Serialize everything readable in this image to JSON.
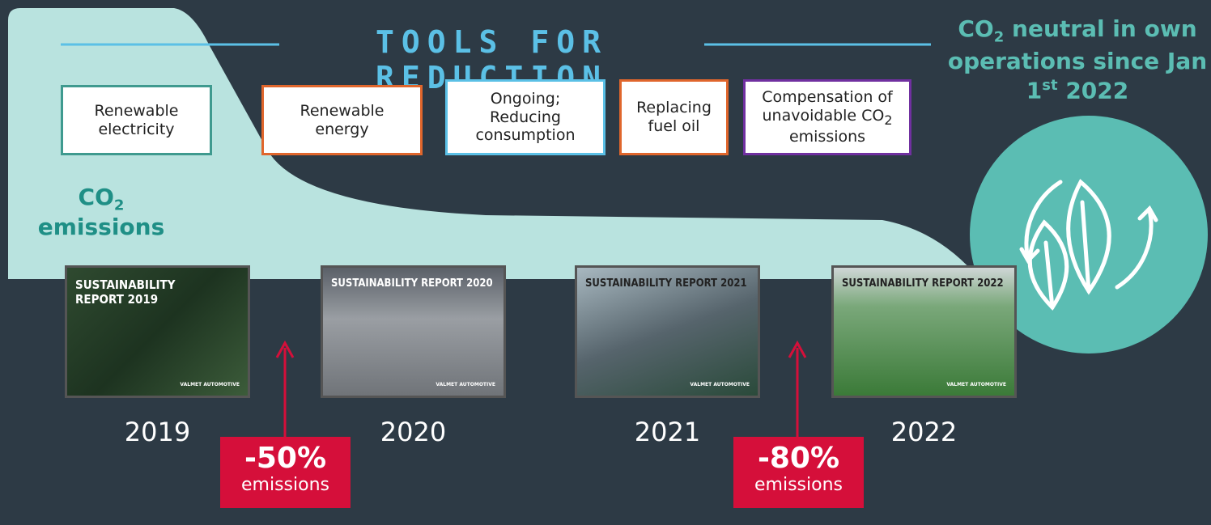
{
  "heading": "TOOLS FOR REDUCTION",
  "tools": [
    {
      "label": "Renewable electricity"
    },
    {
      "label": "Renewable energy"
    },
    {
      "label": "Ongoing; Reducing consumption"
    },
    {
      "label": "Replacing fuel oil"
    },
    {
      "label": "Compensation of unavoidable CO",
      "sub": "2",
      "suffix": "emissions"
    }
  ],
  "emissions_label": {
    "text": "CO",
    "sub": "2",
    "suffix": "emissions"
  },
  "neutral": {
    "part1": "CO",
    "sub": "2",
    "part2": "neutral in own operations since Jan 1",
    "sup": "st",
    "part3": "2022"
  },
  "reports": [
    {
      "title": "SUSTAINABILITY REPORT 2019",
      "brand": "VALMET AUTOMOTIVE",
      "year": "2019"
    },
    {
      "title": "SUSTAINABILITY REPORT 2020",
      "brand": "VALMET AUTOMOTIVE",
      "year": "2020"
    },
    {
      "title": "SUSTAINABILITY REPORT 2021",
      "brand": "VALMET AUTOMOTIVE",
      "year": "2021"
    },
    {
      "title": "SUSTAINABILITY REPORT 2022",
      "brand": "VALMET AUTOMOTIVE",
      "year": "2022"
    }
  ],
  "reductions": [
    {
      "value": "-50%",
      "label": "emissions"
    },
    {
      "value": "-80%",
      "label": "emissions"
    }
  ]
}
